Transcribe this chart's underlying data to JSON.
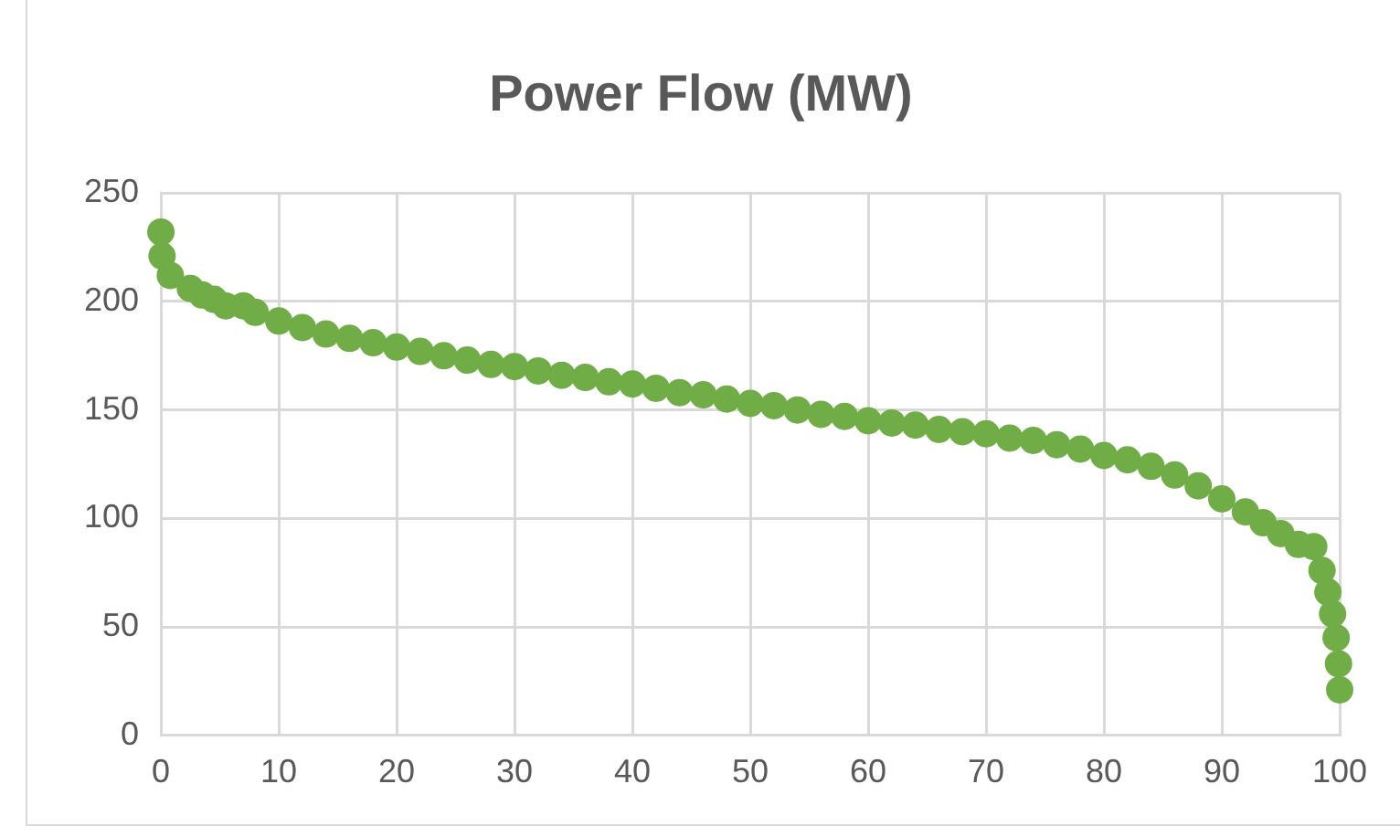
{
  "chart_data": {
    "type": "scatter",
    "title": "Power Flow (MW)",
    "series": [
      {
        "color": "#70ad47",
        "x": [
          0,
          0.1,
          0.8,
          2.5,
          3.5,
          4.5,
          5.5,
          7,
          8,
          10,
          12,
          14,
          16,
          18,
          20,
          22,
          24,
          26,
          28,
          30,
          32,
          34,
          36,
          38,
          40,
          42,
          44,
          46,
          48,
          50,
          52,
          54,
          56,
          58,
          60,
          62,
          64,
          66,
          68,
          70,
          72,
          74,
          76,
          78,
          80,
          82,
          84,
          86,
          88,
          90,
          92,
          93.5,
          95,
          96.5,
          97.8,
          98.5,
          99,
          99.4,
          99.7,
          99.9,
          100
        ],
        "values": [
          232,
          221,
          212,
          206,
          203,
          201,
          198,
          198,
          195,
          191,
          188,
          185,
          183,
          181,
          179,
          177,
          175,
          173,
          171,
          170,
          168,
          166,
          165,
          163,
          162,
          160,
          158,
          157,
          155,
          153,
          152,
          150,
          148,
          147,
          145,
          144,
          143,
          141,
          140,
          139,
          137,
          136,
          134,
          132,
          129,
          127,
          124,
          120,
          115,
          109,
          103,
          98,
          93,
          88,
          87,
          76,
          66,
          56,
          45,
          33,
          21
        ]
      }
    ],
    "xlim": [
      0,
      100
    ],
    "xticks": [
      0,
      10,
      20,
      30,
      40,
      50,
      60,
      70,
      80,
      90,
      100
    ],
    "ylim": [
      0,
      250
    ],
    "yticks": [
      0,
      50,
      100,
      150,
      200,
      250
    ],
    "grid": true,
    "legend": false,
    "marker": "circle"
  }
}
